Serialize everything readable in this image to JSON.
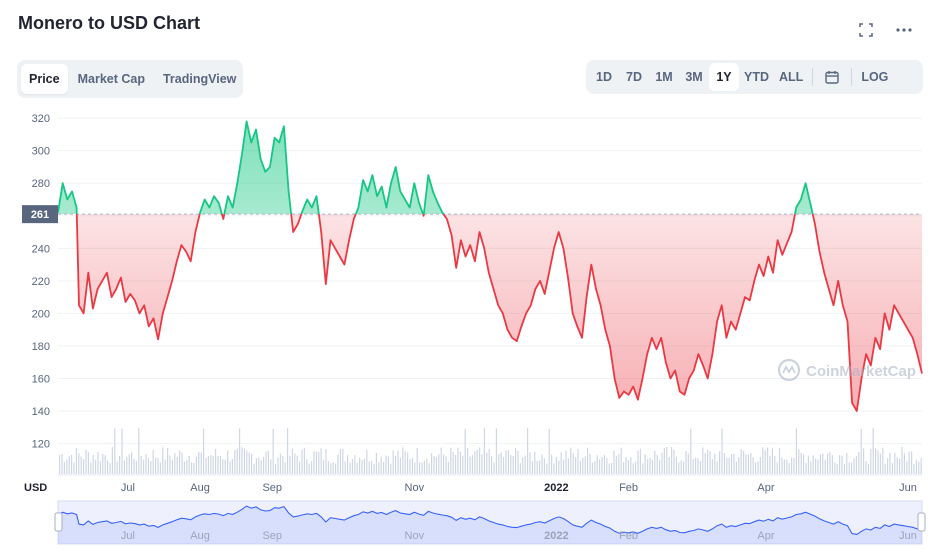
{
  "header": {
    "title": "Monero to USD Chart",
    "expand_icon": "expand-icon",
    "more_icon": "more-horizontal-icon"
  },
  "view_tabs": [
    {
      "label": "Price",
      "active": true
    },
    {
      "label": "Market Cap",
      "active": false
    },
    {
      "label": "TradingView",
      "active": false
    }
  ],
  "range_buttons": [
    {
      "label": "1D",
      "active": false
    },
    {
      "label": "7D",
      "active": false
    },
    {
      "label": "1M",
      "active": false
    },
    {
      "label": "3M",
      "active": false
    },
    {
      "label": "1Y",
      "active": true
    },
    {
      "label": "YTD",
      "active": false
    },
    {
      "label": "ALL",
      "active": false
    }
  ],
  "calendar_icon": "calendar-icon",
  "log_label": "LOG",
  "watermark": "CoinMarketCap",
  "currency_label": "USD",
  "colors": {
    "up": "#16c784",
    "down": "#ea3943",
    "volume": "#cfd6e4",
    "navigator": "#3861fb"
  },
  "chart_data": {
    "type": "line",
    "series_name": "Price",
    "reference_price": 261,
    "reference_label": "261",
    "ylim": [
      105,
      325
    ],
    "y_ticks": [
      120,
      140,
      160,
      180,
      200,
      220,
      240,
      260,
      280,
      300,
      320
    ],
    "x_labels": [
      {
        "label": "Jul",
        "x": 30,
        "bold": false
      },
      {
        "label": "Aug",
        "x": 61,
        "bold": false
      },
      {
        "label": "Sep",
        "x": 92,
        "bold": false
      },
      {
        "label": "Nov",
        "x": 153,
        "bold": false
      },
      {
        "label": "2022",
        "x": 214,
        "bold": true
      },
      {
        "label": "Feb",
        "x": 245,
        "bold": false
      },
      {
        "label": "Apr",
        "x": 304,
        "bold": false
      },
      {
        "label": "Jun",
        "x": 365,
        "bold": false
      }
    ],
    "xlim": [
      0,
      371
    ],
    "points": [
      [
        0,
        262
      ],
      [
        2,
        280
      ],
      [
        4,
        270
      ],
      [
        6,
        275
      ],
      [
        8,
        265
      ],
      [
        9,
        205
      ],
      [
        11,
        200
      ],
      [
        13,
        225
      ],
      [
        15,
        203
      ],
      [
        17,
        215
      ],
      [
        19,
        220
      ],
      [
        21,
        225
      ],
      [
        23,
        210
      ],
      [
        25,
        215
      ],
      [
        27,
        222
      ],
      [
        29,
        207
      ],
      [
        31,
        212
      ],
      [
        33,
        208
      ],
      [
        35,
        200
      ],
      [
        37,
        205
      ],
      [
        39,
        192
      ],
      [
        41,
        197
      ],
      [
        43,
        184
      ],
      [
        45,
        200
      ],
      [
        47,
        210
      ],
      [
        49,
        220
      ],
      [
        51,
        232
      ],
      [
        53,
        242
      ],
      [
        55,
        238
      ],
      [
        57,
        232
      ],
      [
        59,
        250
      ],
      [
        61,
        262
      ],
      [
        63,
        270
      ],
      [
        65,
        265
      ],
      [
        67,
        272
      ],
      [
        69,
        268
      ],
      [
        71,
        258
      ],
      [
        73,
        272
      ],
      [
        75,
        265
      ],
      [
        77,
        280
      ],
      [
        79,
        298
      ],
      [
        81,
        318
      ],
      [
        83,
        305
      ],
      [
        85,
        313
      ],
      [
        87,
        295
      ],
      [
        89,
        287
      ],
      [
        91,
        290
      ],
      [
        93,
        308
      ],
      [
        95,
        305
      ],
      [
        97,
        315
      ],
      [
        99,
        275
      ],
      [
        101,
        250
      ],
      [
        103,
        255
      ],
      [
        105,
        263
      ],
      [
        107,
        270
      ],
      [
        109,
        265
      ],
      [
        111,
        272
      ],
      [
        113,
        250
      ],
      [
        115,
        218
      ],
      [
        117,
        245
      ],
      [
        119,
        240
      ],
      [
        121,
        235
      ],
      [
        123,
        230
      ],
      [
        125,
        245
      ],
      [
        127,
        258
      ],
      [
        129,
        265
      ],
      [
        131,
        282
      ],
      [
        133,
        275
      ],
      [
        135,
        285
      ],
      [
        137,
        272
      ],
      [
        139,
        278
      ],
      [
        141,
        265
      ],
      [
        143,
        280
      ],
      [
        145,
        290
      ],
      [
        147,
        275
      ],
      [
        149,
        270
      ],
      [
        151,
        265
      ],
      [
        153,
        280
      ],
      [
        155,
        268
      ],
      [
        157,
        260
      ],
      [
        159,
        285
      ],
      [
        161,
        275
      ],
      [
        163,
        268
      ],
      [
        165,
        262
      ],
      [
        167,
        258
      ],
      [
        169,
        248
      ],
      [
        171,
        228
      ],
      [
        173,
        245
      ],
      [
        175,
        235
      ],
      [
        177,
        242
      ],
      [
        179,
        232
      ],
      [
        181,
        250
      ],
      [
        183,
        240
      ],
      [
        185,
        225
      ],
      [
        187,
        215
      ],
      [
        189,
        205
      ],
      [
        191,
        200
      ],
      [
        193,
        190
      ],
      [
        195,
        185
      ],
      [
        197,
        183
      ],
      [
        199,
        192
      ],
      [
        201,
        200
      ],
      [
        203,
        205
      ],
      [
        205,
        215
      ],
      [
        207,
        220
      ],
      [
        209,
        212
      ],
      [
        211,
        226
      ],
      [
        213,
        240
      ],
      [
        215,
        250
      ],
      [
        217,
        240
      ],
      [
        219,
        222
      ],
      [
        221,
        200
      ],
      [
        223,
        192
      ],
      [
        225,
        185
      ],
      [
        227,
        210
      ],
      [
        229,
        230
      ],
      [
        231,
        215
      ],
      [
        233,
        205
      ],
      [
        235,
        190
      ],
      [
        237,
        180
      ],
      [
        239,
        160
      ],
      [
        241,
        148
      ],
      [
        243,
        152
      ],
      [
        245,
        150
      ],
      [
        247,
        155
      ],
      [
        249,
        147
      ],
      [
        251,
        160
      ],
      [
        253,
        175
      ],
      [
        255,
        185
      ],
      [
        257,
        178
      ],
      [
        259,
        185
      ],
      [
        261,
        170
      ],
      [
        263,
        160
      ],
      [
        265,
        165
      ],
      [
        267,
        152
      ],
      [
        269,
        150
      ],
      [
        271,
        160
      ],
      [
        273,
        165
      ],
      [
        275,
        175
      ],
      [
        277,
        168
      ],
      [
        279,
        160
      ],
      [
        281,
        175
      ],
      [
        283,
        195
      ],
      [
        285,
        205
      ],
      [
        287,
        185
      ],
      [
        289,
        195
      ],
      [
        291,
        190
      ],
      [
        293,
        200
      ],
      [
        295,
        210
      ],
      [
        297,
        208
      ],
      [
        299,
        220
      ],
      [
        301,
        230
      ],
      [
        303,
        223
      ],
      [
        305,
        235
      ],
      [
        307,
        225
      ],
      [
        309,
        245
      ],
      [
        311,
        236
      ],
      [
        313,
        243
      ],
      [
        315,
        250
      ],
      [
        317,
        265
      ],
      [
        319,
        270
      ],
      [
        321,
        280
      ],
      [
        323,
        268
      ],
      [
        325,
        255
      ],
      [
        327,
        238
      ],
      [
        329,
        225
      ],
      [
        331,
        215
      ],
      [
        333,
        205
      ],
      [
        335,
        220
      ],
      [
        337,
        205
      ],
      [
        339,
        195
      ],
      [
        341,
        145
      ],
      [
        343,
        140
      ],
      [
        345,
        160
      ],
      [
        347,
        175
      ],
      [
        349,
        168
      ],
      [
        351,
        185
      ],
      [
        353,
        178
      ],
      [
        355,
        200
      ],
      [
        357,
        190
      ],
      [
        359,
        205
      ],
      [
        361,
        200
      ],
      [
        363,
        195
      ],
      [
        365,
        190
      ],
      [
        367,
        185
      ],
      [
        369,
        175
      ],
      [
        371,
        163
      ]
    ]
  }
}
